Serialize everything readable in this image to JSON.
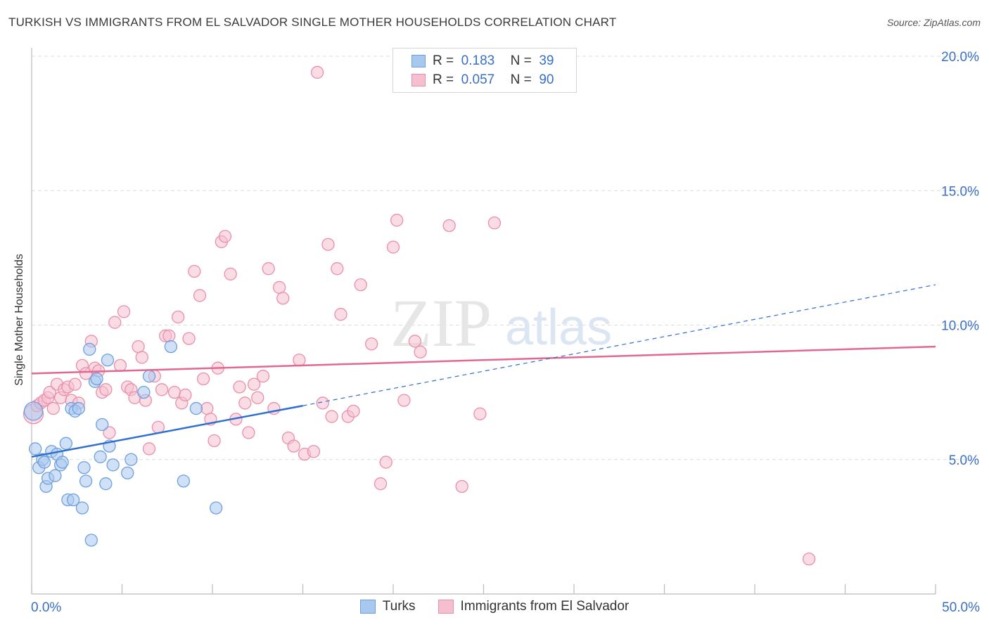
{
  "title": "TURKISH VS IMMIGRANTS FROM EL SALVADOR SINGLE MOTHER HOUSEHOLDS CORRELATION CHART",
  "source": "Source: ZipAtlas.com",
  "watermark": {
    "zip": "ZIP",
    "atlas": "atlas"
  },
  "legend_top": {
    "rows": [
      {
        "r_label": "R =",
        "r_value": "0.183",
        "n_label": "N =",
        "n_value": "39",
        "color": "#a9c8f0",
        "border": "#6fa0dc"
      },
      {
        "r_label": "R =",
        "r_value": "0.057",
        "n_label": "N =",
        "n_value": "90",
        "color": "#f6bfcf",
        "border": "#ea8fab"
      }
    ]
  },
  "colors": {
    "turks_fill": "#a9c8f0",
    "turks_stroke": "#6fa0dc",
    "turks_line": "#2f6fcf",
    "salv_fill": "#f6bfcf",
    "salv_stroke": "#ea8fab",
    "salv_line": "#e2688f",
    "grid": "#dcdcdc",
    "axis_text": "#3a6fc4"
  },
  "chart_data": {
    "type": "scatter",
    "title": "TURKISH VS IMMIGRANTS FROM EL SALVADOR SINGLE MOTHER HOUSEHOLDS CORRELATION CHART",
    "xlabel": "",
    "ylabel": "Single Mother Households",
    "xlim": [
      0,
      50
    ],
    "ylim": [
      0,
      20
    ],
    "x_tick_labels": [
      "0.0%",
      "50.0%"
    ],
    "y_ticks": [
      5,
      10,
      15,
      20
    ],
    "y_tick_labels": [
      "5.0%",
      "10.0%",
      "15.0%",
      "20.0%"
    ],
    "grid": true,
    "legend_position": "bottom",
    "series": [
      {
        "name": "Turks",
        "r": 0.183,
        "n": 39,
        "trend": {
          "x": [
            0,
            15
          ],
          "y": [
            5.1,
            7.0
          ],
          "dashed_to": [
            50,
            11.5
          ]
        },
        "points": [
          [
            0.1,
            6.8
          ],
          [
            0.2,
            5.4
          ],
          [
            0.4,
            4.7
          ],
          [
            0.6,
            5.0
          ],
          [
            0.7,
            4.9
          ],
          [
            0.8,
            4.0
          ],
          [
            0.9,
            4.3
          ],
          [
            1.1,
            5.3
          ],
          [
            1.3,
            4.4
          ],
          [
            1.4,
            5.2
          ],
          [
            1.6,
            4.8
          ],
          [
            1.7,
            4.9
          ],
          [
            1.9,
            5.6
          ],
          [
            2.0,
            3.5
          ],
          [
            2.2,
            6.9
          ],
          [
            2.3,
            3.5
          ],
          [
            2.4,
            6.8
          ],
          [
            2.6,
            6.9
          ],
          [
            2.8,
            3.2
          ],
          [
            2.9,
            4.7
          ],
          [
            3.0,
            4.2
          ],
          [
            3.2,
            9.1
          ],
          [
            3.3,
            2.0
          ],
          [
            3.5,
            7.9
          ],
          [
            3.6,
            8.0
          ],
          [
            3.8,
            5.1
          ],
          [
            3.9,
            6.3
          ],
          [
            4.1,
            4.1
          ],
          [
            4.2,
            8.7
          ],
          [
            4.3,
            5.5
          ],
          [
            4.5,
            4.8
          ],
          [
            5.3,
            4.5
          ],
          [
            5.5,
            5.0
          ],
          [
            6.2,
            7.5
          ],
          [
            6.5,
            8.1
          ],
          [
            7.7,
            9.2
          ],
          [
            8.4,
            4.2
          ],
          [
            9.1,
            6.9
          ],
          [
            10.2,
            3.2
          ]
        ]
      },
      {
        "name": "Immigrants from El Salvador",
        "r": 0.057,
        "n": 90,
        "trend": {
          "x": [
            0,
            50
          ],
          "y": [
            8.2,
            9.2
          ]
        },
        "points": [
          [
            0.1,
            6.7
          ],
          [
            0.3,
            7.0
          ],
          [
            0.5,
            7.1
          ],
          [
            0.7,
            7.2
          ],
          [
            0.9,
            7.3
          ],
          [
            1.0,
            7.5
          ],
          [
            1.2,
            6.9
          ],
          [
            1.4,
            7.8
          ],
          [
            1.6,
            7.3
          ],
          [
            1.8,
            7.6
          ],
          [
            2.0,
            7.7
          ],
          [
            2.2,
            7.2
          ],
          [
            2.4,
            7.8
          ],
          [
            2.6,
            7.1
          ],
          [
            2.8,
            8.5
          ],
          [
            3.0,
            8.2
          ],
          [
            3.3,
            9.4
          ],
          [
            3.5,
            8.4
          ],
          [
            3.7,
            8.3
          ],
          [
            3.9,
            7.5
          ],
          [
            4.1,
            7.6
          ],
          [
            4.3,
            6.0
          ],
          [
            4.6,
            10.1
          ],
          [
            4.9,
            8.5
          ],
          [
            5.1,
            10.5
          ],
          [
            5.3,
            7.7
          ],
          [
            5.5,
            7.6
          ],
          [
            5.7,
            7.3
          ],
          [
            5.9,
            9.2
          ],
          [
            6.1,
            8.8
          ],
          [
            6.3,
            7.2
          ],
          [
            6.5,
            5.4
          ],
          [
            6.8,
            8.1
          ],
          [
            7.0,
            6.2
          ],
          [
            7.2,
            7.6
          ],
          [
            7.4,
            9.6
          ],
          [
            7.6,
            9.6
          ],
          [
            7.9,
            7.5
          ],
          [
            8.1,
            10.3
          ],
          [
            8.3,
            7.1
          ],
          [
            8.5,
            7.4
          ],
          [
            8.7,
            9.5
          ],
          [
            9.0,
            12.0
          ],
          [
            9.3,
            11.1
          ],
          [
            9.5,
            8.0
          ],
          [
            9.7,
            6.9
          ],
          [
            9.9,
            6.5
          ],
          [
            10.1,
            5.7
          ],
          [
            10.3,
            8.4
          ],
          [
            10.5,
            13.1
          ],
          [
            10.7,
            13.3
          ],
          [
            11.0,
            11.9
          ],
          [
            11.3,
            6.5
          ],
          [
            11.5,
            7.7
          ],
          [
            11.8,
            7.1
          ],
          [
            12.0,
            6.0
          ],
          [
            12.3,
            7.8
          ],
          [
            12.5,
            7.3
          ],
          [
            12.8,
            8.1
          ],
          [
            13.1,
            12.1
          ],
          [
            13.4,
            6.9
          ],
          [
            13.7,
            11.4
          ],
          [
            13.9,
            11.0
          ],
          [
            14.2,
            5.8
          ],
          [
            14.5,
            5.5
          ],
          [
            14.8,
            8.7
          ],
          [
            15.1,
            5.2
          ],
          [
            15.6,
            5.3
          ],
          [
            15.8,
            19.4
          ],
          [
            16.1,
            7.1
          ],
          [
            16.4,
            13.0
          ],
          [
            16.6,
            6.6
          ],
          [
            16.9,
            12.1
          ],
          [
            17.1,
            10.4
          ],
          [
            17.5,
            6.6
          ],
          [
            17.8,
            6.8
          ],
          [
            18.2,
            11.5
          ],
          [
            18.8,
            9.3
          ],
          [
            19.3,
            4.1
          ],
          [
            19.6,
            4.9
          ],
          [
            20.0,
            12.9
          ],
          [
            20.2,
            13.9
          ],
          [
            20.6,
            7.2
          ],
          [
            21.2,
            9.4
          ],
          [
            21.5,
            9.0
          ],
          [
            23.1,
            13.7
          ],
          [
            23.8,
            4.0
          ],
          [
            24.8,
            6.7
          ],
          [
            25.6,
            13.8
          ],
          [
            43.0,
            1.3
          ]
        ]
      }
    ]
  },
  "bottom_legend": [
    {
      "label": "Turks",
      "color": "#a9c8f0",
      "border": "#6fa0dc"
    },
    {
      "label": "Immigrants from El Salvador",
      "color": "#f6bfcf",
      "border": "#ea8fab"
    }
  ]
}
